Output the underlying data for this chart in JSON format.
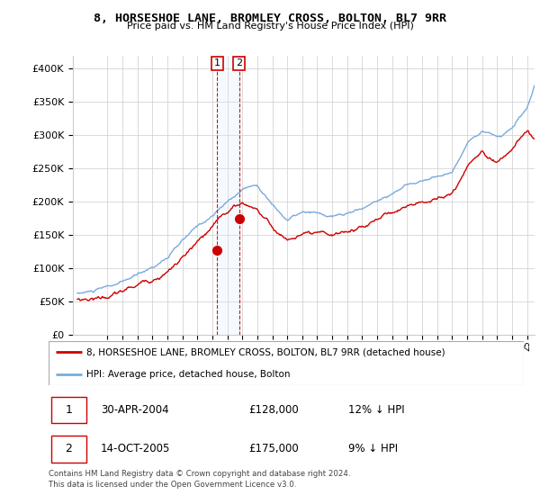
{
  "title": "8, HORSESHOE LANE, BROMLEY CROSS, BOLTON, BL7 9RR",
  "subtitle": "Price paid vs. HM Land Registry's House Price Index (HPI)",
  "legend_line1": "8, HORSESHOE LANE, BROMLEY CROSS, BOLTON, BL7 9RR (detached house)",
  "legend_line2": "HPI: Average price, detached house, Bolton",
  "transaction1_date": "30-APR-2004",
  "transaction1_price": "£128,000",
  "transaction1_hpi": "12% ↓ HPI",
  "transaction2_date": "14-OCT-2005",
  "transaction2_price": "£175,000",
  "transaction2_hpi": "9% ↓ HPI",
  "footer": "Contains HM Land Registry data © Crown copyright and database right 2024.\nThis data is licensed under the Open Government Licence v3.0.",
  "hpi_color": "#7aaadd",
  "price_color": "#cc0000",
  "shade_color": "#ddeeff",
  "marker1_x": 2004.33,
  "marker1_y": 128000,
  "marker2_x": 2005.79,
  "marker2_y": 175000,
  "ylim": [
    0,
    420000
  ],
  "yticks": [
    0,
    50000,
    100000,
    150000,
    200000,
    250000,
    300000,
    350000,
    400000
  ],
  "xlim_start": 1994.7,
  "xlim_end": 2025.5,
  "xtick_start": 1997,
  "xtick_end": 2025
}
